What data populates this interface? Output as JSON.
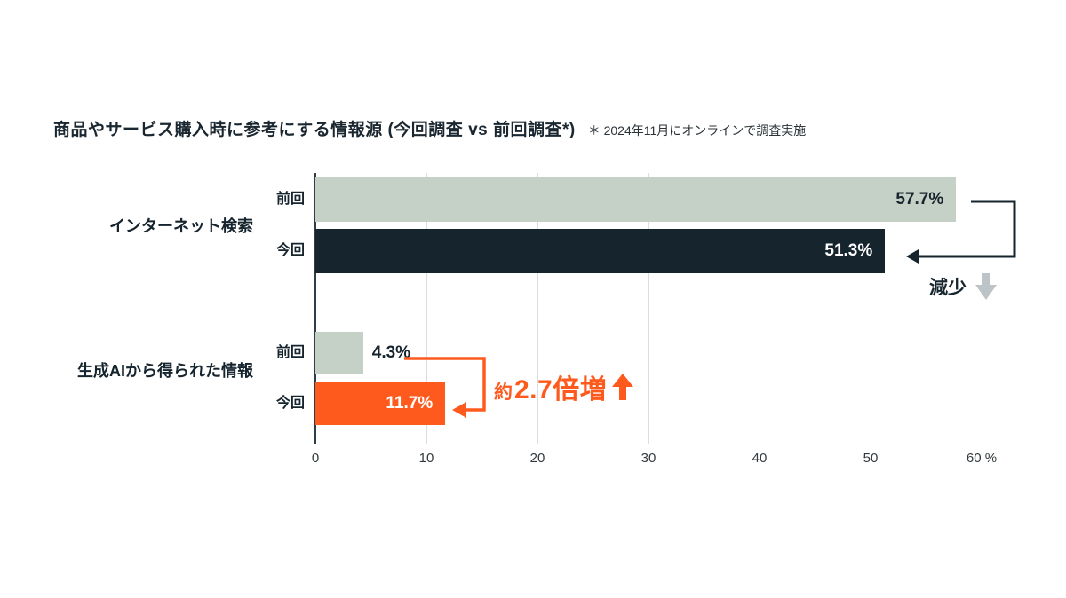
{
  "title": {
    "main": "商品やサービス購入時に参考にする情報源 (今回調査 vs 前回調査*)",
    "note": "＊ 2024年11月にオンラインで調査実施"
  },
  "colors": {
    "previous_bar": "#c5d1c6",
    "current_bar_dark": "#16242e",
    "current_bar_orange": "#ff5a1e",
    "gridline": "#d9dee1",
    "gray_arrow": "#bdc4c8",
    "text_dark": "#16242e"
  },
  "chart_data": {
    "type": "bar",
    "orientation": "horizontal",
    "title": "商品やサービス購入時に参考にする情報源 (今回調査 vs 前回調査*)",
    "xlabel": "%",
    "xlim": [
      0,
      60
    ],
    "xticks": [
      0,
      10,
      20,
      30,
      40,
      50,
      60
    ],
    "xtick_labels": [
      "0",
      "10",
      "20",
      "30",
      "40",
      "50",
      "60 %"
    ],
    "grid": true,
    "groups": [
      {
        "category": "インターネット検索",
        "bars": [
          {
            "label": "前回",
            "value": 57.7,
            "display": "57.7%",
            "color": "#c5d1c6",
            "value_color": "#16242e",
            "value_inside": true
          },
          {
            "label": "今回",
            "value": 51.3,
            "display": "51.3%",
            "color": "#16242e",
            "value_color": "#ffffff",
            "value_inside": true
          }
        ],
        "annotation": {
          "text": "減少",
          "direction": "down",
          "color": "#16242e",
          "arrow_color": "#bdc4c8"
        }
      },
      {
        "category": "生成AIから得られた情報",
        "bars": [
          {
            "label": "前回",
            "value": 4.3,
            "display": "4.3%",
            "color": "#c5d1c6",
            "value_color": "#16242e",
            "value_inside": false
          },
          {
            "label": "今回",
            "value": 11.7,
            "display": "11.7%",
            "color": "#ff5a1e",
            "value_color": "#ffffff",
            "value_inside": true
          }
        ],
        "annotation": {
          "prefix": "約",
          "text": "2.7倍増",
          "direction": "up",
          "color": "#ff5a1e"
        }
      }
    ]
  }
}
